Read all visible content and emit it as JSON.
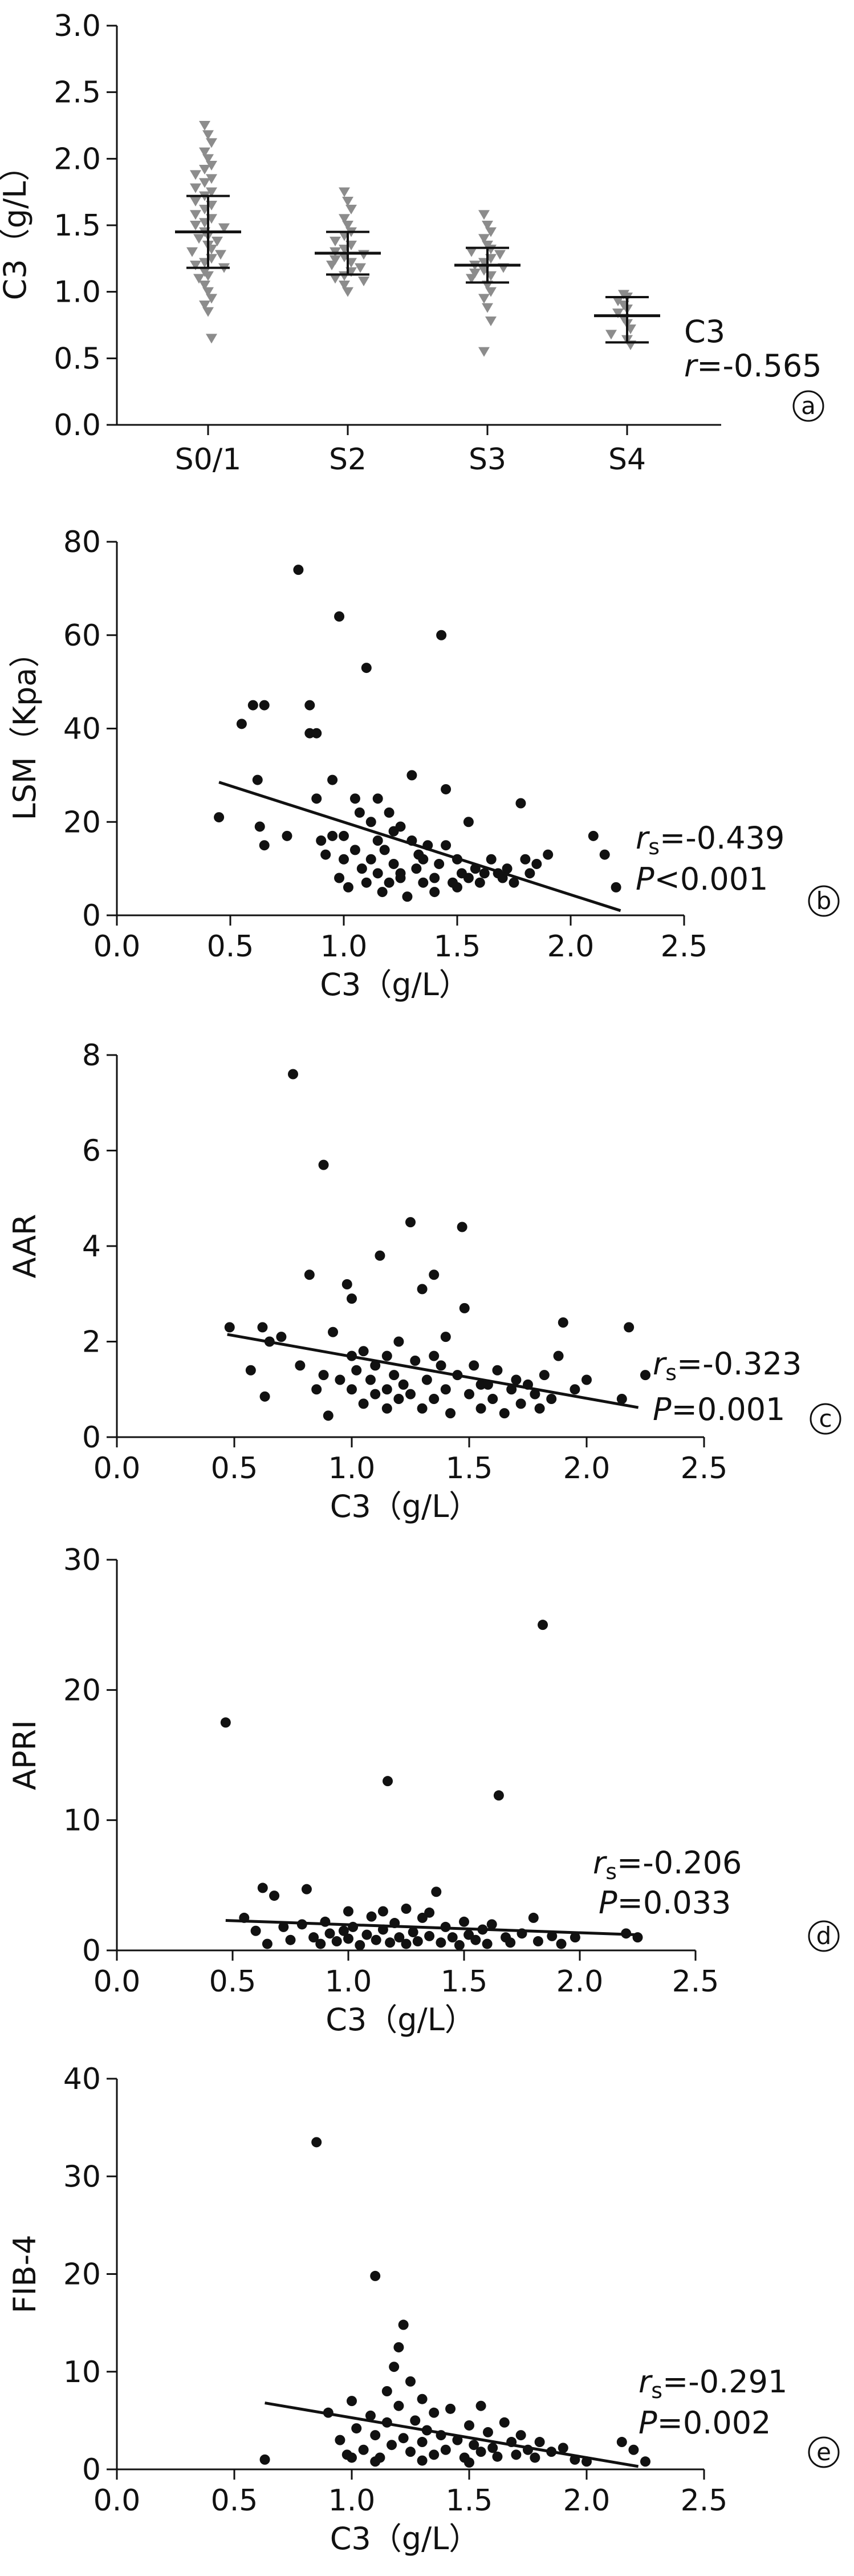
{
  "chart_data": [
    {
      "type": "scatter",
      "panel": "a",
      "ylabel": "C3（g/L）",
      "xlabel": "",
      "categories": [
        "S0/1",
        "S2",
        "S3",
        "S4"
      ],
      "yticks": [
        "0.0",
        "0.5",
        "1.0",
        "1.5",
        "2.0",
        "2.5",
        "3.0"
      ],
      "ylim": [
        0,
        3.0
      ],
      "annotation": [
        "C3",
        "r=-0.565"
      ],
      "groups": [
        {
          "category": "S0/1",
          "mean": 1.45,
          "sd_low": 1.18,
          "sd_high": 1.72,
          "values": [
            2.25,
            2.18,
            2.12,
            2.05,
            2.0,
            1.95,
            1.92,
            1.88,
            1.85,
            1.82,
            1.78,
            1.75,
            1.72,
            1.68,
            1.65,
            1.62,
            1.58,
            1.55,
            1.52,
            1.5,
            1.48,
            1.45,
            1.42,
            1.4,
            1.38,
            1.35,
            1.32,
            1.3,
            1.28,
            1.25,
            1.22,
            1.2,
            1.18,
            1.15,
            1.12,
            1.1,
            1.05,
            1.0,
            0.95,
            0.9,
            0.85,
            0.65
          ]
        },
        {
          "category": "S2",
          "mean": 1.29,
          "sd_low": 1.13,
          "sd_high": 1.45,
          "values": [
            1.75,
            1.68,
            1.62,
            1.55,
            1.5,
            1.45,
            1.42,
            1.38,
            1.35,
            1.32,
            1.3,
            1.28,
            1.26,
            1.24,
            1.22,
            1.2,
            1.18,
            1.15,
            1.12,
            1.1,
            1.08,
            1.05,
            1.0
          ]
        },
        {
          "category": "S3",
          "mean": 1.2,
          "sd_low": 1.07,
          "sd_high": 1.33,
          "values": [
            1.58,
            1.5,
            1.45,
            1.4,
            1.35,
            1.32,
            1.3,
            1.28,
            1.25,
            1.22,
            1.2,
            1.18,
            1.16,
            1.14,
            1.12,
            1.1,
            1.05,
            1.0,
            0.95,
            0.88,
            0.78,
            0.55
          ]
        },
        {
          "category": "S4",
          "mean": 0.82,
          "sd_low": 0.62,
          "sd_high": 0.96,
          "values": [
            0.98,
            0.96,
            0.93,
            0.9,
            0.87,
            0.84,
            0.8,
            0.76,
            0.72,
            0.68,
            0.64,
            0.6
          ]
        }
      ]
    },
    {
      "type": "scatter",
      "panel": "b",
      "xlabel": "C3（g/L）",
      "ylabel": "LSM（Kpa）",
      "xlim": [
        0,
        2.5
      ],
      "ylim": [
        0,
        80
      ],
      "xticks": [
        "0.0",
        "0.5",
        "1.0",
        "1.5",
        "2.0",
        "2.5"
      ],
      "yticks": [
        "0",
        "20",
        "40",
        "60",
        "80"
      ],
      "annotation": [
        "rs=-0.439",
        "P<0.001"
      ],
      "trend": {
        "x": [
          0.45,
          2.22
        ],
        "y": [
          28.5,
          1.0
        ]
      },
      "points": [
        [
          0.45,
          21
        ],
        [
          0.55,
          41
        ],
        [
          0.6,
          45
        ],
        [
          0.65,
          45
        ],
        [
          0.62,
          29
        ],
        [
          0.63,
          19
        ],
        [
          0.65,
          15
        ],
        [
          0.75,
          17
        ],
        [
          0.8,
          74
        ],
        [
          0.85,
          45
        ],
        [
          0.85,
          39
        ],
        [
          0.88,
          39
        ],
        [
          0.88,
          25
        ],
        [
          0.9,
          16
        ],
        [
          0.92,
          13
        ],
        [
          0.95,
          29
        ],
        [
          0.95,
          17
        ],
        [
          0.98,
          64
        ],
        [
          0.98,
          8
        ],
        [
          1.0,
          12
        ],
        [
          1.0,
          17
        ],
        [
          1.02,
          6
        ],
        [
          1.05,
          25
        ],
        [
          1.05,
          14
        ],
        [
          1.07,
          22
        ],
        [
          1.08,
          10
        ],
        [
          1.1,
          7
        ],
        [
          1.1,
          53
        ],
        [
          1.12,
          20
        ],
        [
          1.12,
          12
        ],
        [
          1.15,
          16
        ],
        [
          1.15,
          9
        ],
        [
          1.17,
          5
        ],
        [
          1.18,
          14
        ],
        [
          1.2,
          7
        ],
        [
          1.2,
          22
        ],
        [
          1.22,
          11
        ],
        [
          1.22,
          18
        ],
        [
          1.25,
          9
        ],
        [
          1.25,
          8
        ],
        [
          1.28,
          4
        ],
        [
          1.3,
          30
        ],
        [
          1.3,
          16
        ],
        [
          1.32,
          10
        ],
        [
          1.33,
          13
        ],
        [
          1.35,
          7
        ],
        [
          1.37,
          15
        ],
        [
          1.4,
          8
        ],
        [
          1.4,
          5
        ],
        [
          1.42,
          11
        ],
        [
          1.43,
          60
        ],
        [
          1.45,
          27
        ],
        [
          1.45,
          15
        ],
        [
          1.48,
          7
        ],
        [
          1.5,
          12
        ],
        [
          1.5,
          6
        ],
        [
          1.52,
          9
        ],
        [
          1.55,
          20
        ],
        [
          1.55,
          8
        ],
        [
          1.58,
          10
        ],
        [
          1.6,
          7
        ],
        [
          1.62,
          9
        ],
        [
          1.65,
          12
        ],
        [
          1.68,
          9
        ],
        [
          1.7,
          8
        ],
        [
          1.72,
          10
        ],
        [
          1.75,
          7
        ],
        [
          1.78,
          24
        ],
        [
          1.8,
          12
        ],
        [
          1.82,
          9
        ],
        [
          1.85,
          11
        ],
        [
          1.9,
          13
        ],
        [
          2.1,
          17
        ],
        [
          2.15,
          13
        ],
        [
          2.2,
          6
        ],
        [
          1.15,
          25
        ],
        [
          1.25,
          19
        ],
        [
          1.35,
          12
        ]
      ]
    },
    {
      "type": "scatter",
      "panel": "c",
      "xlabel": "C3（g/L）",
      "ylabel": "AAR",
      "xlim": [
        0,
        2.5
      ],
      "ylim": [
        0,
        8
      ],
      "xticks": [
        "0.0",
        "0.5",
        "1.0",
        "1.5",
        "2.0",
        "2.5"
      ],
      "yticks": [
        "0",
        "2",
        "4",
        "6",
        "8"
      ],
      "annotation": [
        "rs=-0.323",
        "P=0.001"
      ],
      "trend": {
        "x": [
          0.47,
          2.22
        ],
        "y": [
          2.15,
          0.62
        ]
      },
      "points": [
        [
          0.48,
          2.3
        ],
        [
          0.57,
          1.4
        ],
        [
          0.62,
          2.3
        ],
        [
          0.63,
          0.85
        ],
        [
          0.65,
          2.0
        ],
        [
          0.7,
          2.1
        ],
        [
          0.75,
          7.6
        ],
        [
          0.78,
          1.5
        ],
        [
          0.82,
          3.4
        ],
        [
          0.85,
          1.0
        ],
        [
          0.88,
          5.7
        ],
        [
          0.88,
          1.3
        ],
        [
          0.9,
          0.45
        ],
        [
          0.92,
          2.2
        ],
        [
          0.95,
          1.2
        ],
        [
          0.98,
          3.2
        ],
        [
          1.0,
          2.9
        ],
        [
          1.0,
          1.0
        ],
        [
          1.02,
          1.4
        ],
        [
          1.05,
          1.8
        ],
        [
          1.05,
          0.7
        ],
        [
          1.08,
          1.2
        ],
        [
          1.1,
          0.9
        ],
        [
          1.1,
          1.5
        ],
        [
          1.12,
          3.8
        ],
        [
          1.15,
          1.0
        ],
        [
          1.15,
          0.6
        ],
        [
          1.18,
          1.3
        ],
        [
          1.2,
          0.8
        ],
        [
          1.2,
          2.0
        ],
        [
          1.22,
          1.1
        ],
        [
          1.25,
          4.5
        ],
        [
          1.25,
          0.9
        ],
        [
          1.27,
          1.6
        ],
        [
          1.3,
          0.6
        ],
        [
          1.3,
          3.1
        ],
        [
          1.32,
          1.2
        ],
        [
          1.35,
          3.4
        ],
        [
          1.35,
          0.8
        ],
        [
          1.38,
          1.5
        ],
        [
          1.4,
          1.0
        ],
        [
          1.4,
          2.1
        ],
        [
          1.42,
          0.5
        ],
        [
          1.45,
          1.3
        ],
        [
          1.47,
          4.4
        ],
        [
          1.48,
          2.7
        ],
        [
          1.5,
          0.9
        ],
        [
          1.52,
          1.5
        ],
        [
          1.55,
          0.6
        ],
        [
          1.58,
          1.1
        ],
        [
          1.6,
          0.8
        ],
        [
          1.62,
          1.4
        ],
        [
          1.65,
          0.5
        ],
        [
          1.68,
          1.0
        ],
        [
          1.7,
          1.2
        ],
        [
          1.72,
          0.7
        ],
        [
          1.75,
          1.1
        ],
        [
          1.78,
          0.9
        ],
        [
          1.8,
          0.6
        ],
        [
          1.82,
          1.3
        ],
        [
          1.85,
          0.8
        ],
        [
          1.88,
          1.7
        ],
        [
          1.9,
          2.4
        ],
        [
          1.95,
          1.0
        ],
        [
          2.0,
          1.2
        ],
        [
          2.15,
          0.8
        ],
        [
          2.18,
          2.3
        ],
        [
          2.25,
          1.3
        ],
        [
          1.0,
          1.7
        ],
        [
          1.15,
          1.7
        ],
        [
          1.35,
          1.7
        ],
        [
          1.55,
          1.1
        ]
      ]
    },
    {
      "type": "scatter",
      "panel": "d",
      "xlabel": "C3（g/L）",
      "ylabel": "APRI",
      "xlim": [
        0,
        2.5
      ],
      "ylim": [
        0,
        30
      ],
      "xticks": [
        "0.0",
        "0.5",
        "1.0",
        "1.5",
        "2.0",
        "2.5"
      ],
      "yticks": [
        "0",
        "10",
        "20",
        "30"
      ],
      "annotation": [
        "rs=-0.206",
        "P=0.033"
      ],
      "trend": {
        "x": [
          0.47,
          2.25
        ],
        "y": [
          2.3,
          1.2
        ]
      },
      "points": [
        [
          0.47,
          17.5
        ],
        [
          0.55,
          2.5
        ],
        [
          0.6,
          1.5
        ],
        [
          0.63,
          4.8
        ],
        [
          0.65,
          0.5
        ],
        [
          0.68,
          4.2
        ],
        [
          0.72,
          1.8
        ],
        [
          0.75,
          0.8
        ],
        [
          0.8,
          2.0
        ],
        [
          0.82,
          4.7
        ],
        [
          0.85,
          1.0
        ],
        [
          0.88,
          0.5
        ],
        [
          0.9,
          2.2
        ],
        [
          0.92,
          1.3
        ],
        [
          0.95,
          0.7
        ],
        [
          0.98,
          1.5
        ],
        [
          1.0,
          3.0
        ],
        [
          1.0,
          0.9
        ],
        [
          1.02,
          1.8
        ],
        [
          1.05,
          0.4
        ],
        [
          1.08,
          1.2
        ],
        [
          1.1,
          2.6
        ],
        [
          1.12,
          0.8
        ],
        [
          1.15,
          1.6
        ],
        [
          1.17,
          13.0
        ],
        [
          1.18,
          0.6
        ],
        [
          1.2,
          2.1
        ],
        [
          1.22,
          1.0
        ],
        [
          1.25,
          0.5
        ],
        [
          1.25,
          3.2
        ],
        [
          1.28,
          1.4
        ],
        [
          1.3,
          0.7
        ],
        [
          1.32,
          2.5
        ],
        [
          1.35,
          1.1
        ],
        [
          1.38,
          4.5
        ],
        [
          1.4,
          0.6
        ],
        [
          1.42,
          1.8
        ],
        [
          1.45,
          1.0
        ],
        [
          1.48,
          0.4
        ],
        [
          1.5,
          2.2
        ],
        [
          1.52,
          1.2
        ],
        [
          1.55,
          0.8
        ],
        [
          1.58,
          1.6
        ],
        [
          1.6,
          0.5
        ],
        [
          1.62,
          2.0
        ],
        [
          1.65,
          11.9
        ],
        [
          1.68,
          1.0
        ],
        [
          1.7,
          0.6
        ],
        [
          1.75,
          1.3
        ],
        [
          1.8,
          2.5
        ],
        [
          1.82,
          0.7
        ],
        [
          1.84,
          25.0
        ],
        [
          1.88,
          1.1
        ],
        [
          1.92,
          0.5
        ],
        [
          1.98,
          1.0
        ],
        [
          2.2,
          1.3
        ],
        [
          2.25,
          1.0
        ],
        [
          1.15,
          3.0
        ],
        [
          1.35,
          2.9
        ]
      ]
    },
    {
      "type": "scatter",
      "panel": "e",
      "xlabel": "C3（g/L）",
      "ylabel": "FIB-4",
      "xlim": [
        0,
        2.5
      ],
      "ylim": [
        0,
        40
      ],
      "xticks": [
        "0.0",
        "0.5",
        "1.0",
        "1.5",
        "2.0",
        "2.5"
      ],
      "yticks": [
        "0",
        "10",
        "20",
        "30",
        "40"
      ],
      "annotation": [
        "rs=-0.291",
        "P=0.002"
      ],
      "trend": {
        "x": [
          0.63,
          2.22
        ],
        "y": [
          6.8,
          0.3
        ]
      },
      "points": [
        [
          0.63,
          1.0
        ],
        [
          0.85,
          33.5
        ],
        [
          0.9,
          5.8
        ],
        [
          0.95,
          3.0
        ],
        [
          0.98,
          1.5
        ],
        [
          1.0,
          7.0
        ],
        [
          1.02,
          4.2
        ],
        [
          1.05,
          2.0
        ],
        [
          1.08,
          5.5
        ],
        [
          1.1,
          19.8
        ],
        [
          1.1,
          3.5
        ],
        [
          1.12,
          1.2
        ],
        [
          1.15,
          8.0
        ],
        [
          1.15,
          4.8
        ],
        [
          1.17,
          2.5
        ],
        [
          1.18,
          10.5
        ],
        [
          1.2,
          12.5
        ],
        [
          1.2,
          6.5
        ],
        [
          1.22,
          3.2
        ],
        [
          1.22,
          14.8
        ],
        [
          1.25,
          1.8
        ],
        [
          1.25,
          9.0
        ],
        [
          1.27,
          5.0
        ],
        [
          1.3,
          2.8
        ],
        [
          1.3,
          7.2
        ],
        [
          1.32,
          4.0
        ],
        [
          1.35,
          1.5
        ],
        [
          1.35,
          5.8
        ],
        [
          1.38,
          3.5
        ],
        [
          1.4,
          2.0
        ],
        [
          1.42,
          6.2
        ],
        [
          1.45,
          3.0
        ],
        [
          1.48,
          1.2
        ],
        [
          1.5,
          4.5
        ],
        [
          1.52,
          2.5
        ],
        [
          1.55,
          1.8
        ],
        [
          1.55,
          6.5
        ],
        [
          1.58,
          3.8
        ],
        [
          1.6,
          2.2
        ],
        [
          1.62,
          1.3
        ],
        [
          1.65,
          4.8
        ],
        [
          1.68,
          2.8
        ],
        [
          1.7,
          1.5
        ],
        [
          1.72,
          3.5
        ],
        [
          1.75,
          2.0
        ],
        [
          1.78,
          1.2
        ],
        [
          1.8,
          2.8
        ],
        [
          1.85,
          1.8
        ],
        [
          1.9,
          2.2
        ],
        [
          1.95,
          1.0
        ],
        [
          2.0,
          0.8
        ],
        [
          2.15,
          2.8
        ],
        [
          2.2,
          2.0
        ],
        [
          2.25,
          0.8
        ],
        [
          1.0,
          1.2
        ],
        [
          1.1,
          0.8
        ],
        [
          1.3,
          0.9
        ],
        [
          1.5,
          0.7
        ]
      ]
    }
  ]
}
